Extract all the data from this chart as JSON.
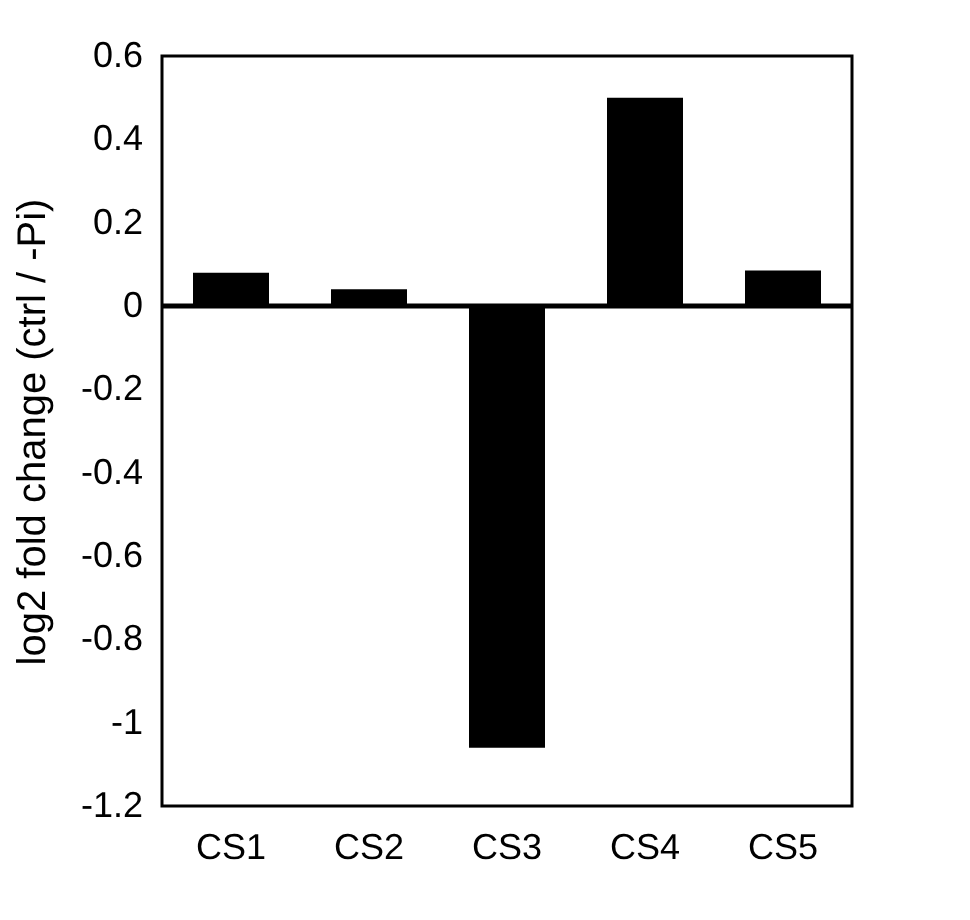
{
  "chart_data": {
    "type": "bar",
    "ylabel": "log2 fold change (ctrl / -Pi)",
    "categories": [
      "CS1",
      "CS2",
      "CS3",
      "CS4",
      "CS5"
    ],
    "values": [
      0.08,
      0.04,
      -1.06,
      0.5,
      0.085
    ],
    "color": "#000000",
    "ylim": [
      -1.2,
      0.6
    ],
    "yticks": [
      -1.2,
      -1,
      -0.8,
      -0.6,
      -0.4,
      -0.2,
      0,
      0.2,
      0.4,
      0.6
    ],
    "grid": false,
    "ref_lines": [
      {
        "axis": "y",
        "value": 0,
        "color": "#000000"
      }
    ]
  }
}
